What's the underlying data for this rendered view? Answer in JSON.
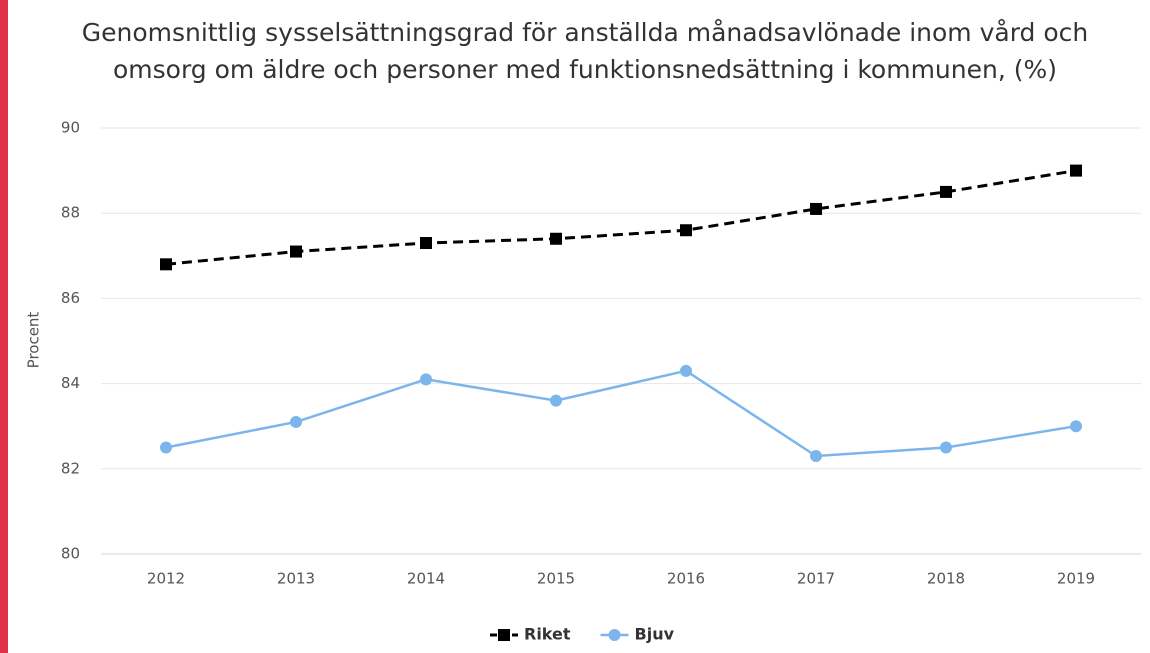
{
  "chart_data": {
    "type": "line",
    "title": "Genomsnittlig sysselsättningsgrad för anställda månadsavlönade inom vård och omsorg om äldre och personer med funktionsnedsättning i kommunen, (%)",
    "y_label": "Procent",
    "categories": [
      "2012",
      "2013",
      "2014",
      "2015",
      "2016",
      "2017",
      "2018",
      "2019"
    ],
    "series": [
      {
        "name": "Riket",
        "color": "#000000",
        "dashed": true,
        "marker": "square",
        "values": [
          86.8,
          87.1,
          87.3,
          87.4,
          87.6,
          88.1,
          88.5,
          89.0
        ]
      },
      {
        "name": "Bjuv",
        "color": "#7cb5ec",
        "dashed": false,
        "marker": "circle",
        "values": [
          82.5,
          83.1,
          84.1,
          83.6,
          84.3,
          82.3,
          82.5,
          83.0
        ]
      }
    ],
    "ylim": [
      80,
      90
    ],
    "yticks": [
      80,
      82,
      84,
      86,
      88,
      90
    ],
    "grid": true,
    "legend": "bottom"
  }
}
